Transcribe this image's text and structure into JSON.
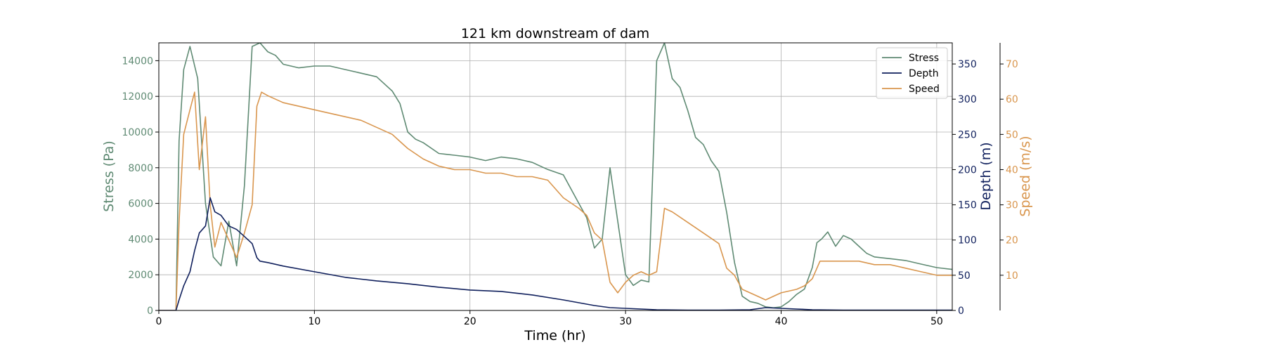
{
  "chart_data": {
    "type": "line",
    "title": "121 km downstream of dam",
    "xlabel": "Time (hr)",
    "xlim": [
      0,
      51
    ],
    "xticks": [
      0,
      10,
      20,
      30,
      40,
      50
    ],
    "grid": true,
    "legend_position": "top-right",
    "axes": {
      "stress": {
        "label": "Stress (Pa)",
        "ylim": [
          0,
          15000
        ],
        "ticks": [
          0,
          2000,
          4000,
          6000,
          8000,
          10000,
          12000,
          14000
        ],
        "color": "#5f8a73"
      },
      "depth": {
        "label": "Depth (m)",
        "ylim": [
          0,
          380
        ],
        "ticks": [
          0,
          50,
          100,
          150,
          200,
          250,
          300,
          350
        ],
        "color": "#0f1f5c"
      },
      "speed": {
        "label": "Speed (m/s)",
        "ylim": [
          0,
          76
        ],
        "ticks": [
          10,
          20,
          30,
          40,
          50,
          60,
          70
        ],
        "color": "#d9964e"
      }
    },
    "series": [
      {
        "name": "Stress",
        "axis": "stress",
        "color": "#5f8a73",
        "x": [
          0,
          1.1,
          1.3,
          1.6,
          2.0,
          2.5,
          3.0,
          3.5,
          4.0,
          4.5,
          5.0,
          5.5,
          6.0,
          6.5,
          7.0,
          7.5,
          8.0,
          9.0,
          10.0,
          11.0,
          12.0,
          13.0,
          14.0,
          15.0,
          15.5,
          16.0,
          16.5,
          17.0,
          18.0,
          19.0,
          20.0,
          21.0,
          22.0,
          23.0,
          24.0,
          25.0,
          26.0,
          26.5,
          27.0,
          27.5,
          28.0,
          28.5,
          29.0,
          29.5,
          30.0,
          30.5,
          31.0,
          31.5,
          32.0,
          32.5,
          33.0,
          33.5,
          34.0,
          34.5,
          35.0,
          35.5,
          36.0,
          36.5,
          37.0,
          37.5,
          38.0,
          38.5,
          39.0,
          39.5,
          40.0,
          40.5,
          41.0,
          41.5,
          42.0,
          42.3,
          42.6,
          43.0,
          43.5,
          44.0,
          44.5,
          45.0,
          45.5,
          46.0,
          47.0,
          48.0,
          49.0,
          50.0,
          51.0
        ],
        "values": [
          0,
          0,
          9500,
          13500,
          14800,
          13000,
          6000,
          3000,
          2500,
          5000,
          2500,
          7000,
          14800,
          15000,
          14500,
          14300,
          13800,
          13600,
          13700,
          13700,
          13500,
          13300,
          13100,
          12300,
          11600,
          10000,
          9600,
          9400,
          8800,
          8700,
          8600,
          8400,
          8600,
          8500,
          8300,
          7900,
          7600,
          6800,
          6000,
          5200,
          3500,
          4000,
          8000,
          5000,
          2000,
          1400,
          1700,
          1600,
          14000,
          15000,
          13000,
          12500,
          11200,
          9700,
          9300,
          8400,
          7800,
          5500,
          2700,
          800,
          500,
          400,
          200,
          150,
          200,
          500,
          900,
          1200,
          2400,
          3800,
          4000,
          4400,
          3600,
          4200,
          4000,
          3600,
          3200,
          3000,
          2900,
          2800,
          2600,
          2400,
          2300
        ]
      },
      {
        "name": "Depth",
        "axis": "depth",
        "color": "#0f1f5c",
        "x": [
          0,
          1.1,
          1.3,
          1.6,
          2.0,
          2.3,
          2.6,
          3.0,
          3.3,
          3.6,
          4.0,
          4.5,
          5.0,
          5.5,
          6.0,
          6.3,
          6.5,
          7.0,
          8.0,
          10.0,
          12.0,
          14.0,
          16.0,
          18.0,
          20.0,
          22.0,
          24.0,
          26.0,
          27.0,
          28.0,
          29.0,
          30.0,
          31.0,
          32.0,
          34.0,
          36.0,
          38.0,
          39.0,
          40.0,
          41.0,
          42.0,
          44.0,
          46.0,
          48.0,
          51.0
        ],
        "values": [
          0,
          0,
          15,
          35,
          55,
          85,
          110,
          120,
          160,
          140,
          135,
          120,
          115,
          105,
          95,
          75,
          70,
          68,
          63,
          55,
          47,
          42,
          38,
          33,
          29,
          27,
          22,
          15,
          11,
          7,
          4,
          3,
          2,
          1,
          0.5,
          0.5,
          1,
          4,
          3,
          2,
          1,
          0.5,
          0.5,
          0.5,
          0.5
        ]
      },
      {
        "name": "Speed",
        "axis": "speed",
        "color": "#d9964e",
        "x": [
          0,
          1.1,
          1.3,
          1.6,
          2.0,
          2.3,
          2.6,
          3.0,
          3.3,
          3.6,
          4.0,
          4.5,
          5.0,
          5.5,
          6.0,
          6.3,
          6.6,
          7.0,
          7.5,
          8.0,
          9.0,
          10.0,
          11.0,
          12.0,
          13.0,
          14.0,
          15.0,
          15.5,
          16.0,
          17.0,
          18.0,
          19.0,
          20.0,
          21.0,
          22.0,
          23.0,
          24.0,
          25.0,
          26.0,
          27.0,
          27.5,
          28.0,
          28.5,
          29.0,
          29.5,
          30.0,
          30.5,
          31.0,
          31.5,
          32.0,
          32.5,
          33.0,
          34.0,
          35.0,
          36.0,
          36.5,
          37.0,
          37.5,
          38.0,
          38.5,
          39.0,
          39.5,
          40.0,
          41.0,
          41.5,
          42.0,
          42.5,
          43.0,
          44.0,
          45.0,
          46.0,
          47.0,
          48.0,
          49.0,
          50.0,
          51.0
        ],
        "values": [
          0,
          0,
          25,
          50,
          57,
          62,
          40,
          55,
          30,
          18,
          25,
          20,
          15,
          22,
          30,
          58,
          62,
          61,
          60,
          59,
          58,
          57,
          56,
          55,
          54,
          52,
          50,
          48,
          46,
          43,
          41,
          40,
          40,
          39,
          39,
          38,
          38,
          37,
          32,
          29,
          27,
          22,
          20,
          8,
          5,
          8,
          10,
          11,
          10,
          11,
          29,
          28,
          25,
          22,
          19,
          12,
          10,
          6,
          5,
          4,
          3,
          4,
          5,
          6,
          7,
          9,
          14,
          14,
          14,
          14,
          13,
          13,
          12,
          11,
          10,
          10
        ]
      }
    ]
  }
}
